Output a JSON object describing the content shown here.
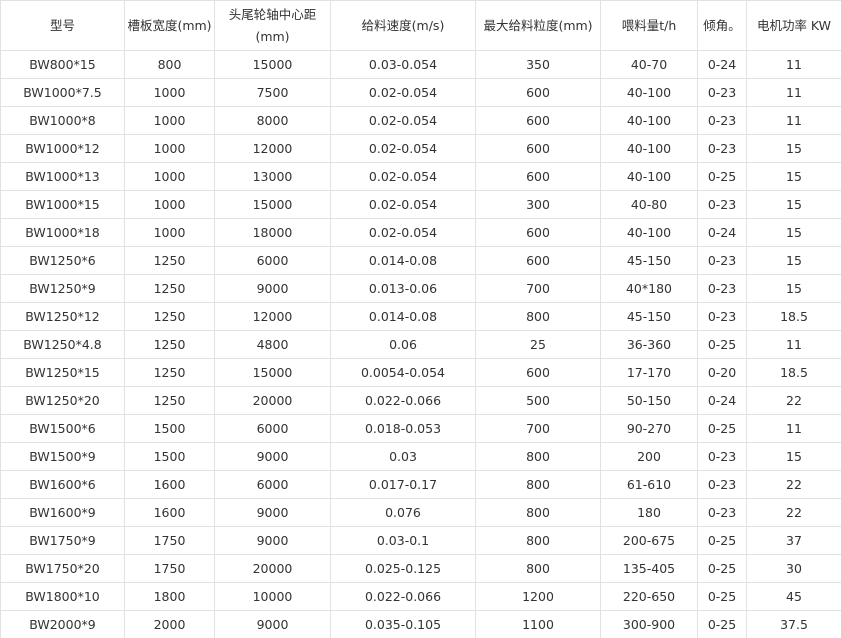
{
  "table": {
    "header": [
      "型号",
      "槽板宽度(mm)",
      "头尾轮轴中心距(mm)",
      "给料速度(m/s)",
      "最大给料粒度(mm)",
      "喂料量t/h",
      "倾角。",
      "电机功率 KW"
    ],
    "rows": [
      [
        "BW800*15",
        "800",
        "15000",
        "0.03-0.054",
        "350",
        "40-70",
        "0-24",
        "11"
      ],
      [
        "BW1000*7.5",
        "1000",
        "7500",
        "0.02-0.054",
        "600",
        "40-100",
        "0-23",
        "11"
      ],
      [
        "BW1000*8",
        "1000",
        "8000",
        "0.02-0.054",
        "600",
        "40-100",
        "0-23",
        "11"
      ],
      [
        "BW1000*12",
        "1000",
        "12000",
        "0.02-0.054",
        "600",
        "40-100",
        "0-23",
        "15"
      ],
      [
        "BW1000*13",
        "1000",
        "13000",
        "0.02-0.054",
        "600",
        "40-100",
        "0-25",
        "15"
      ],
      [
        "BW1000*15",
        "1000",
        "15000",
        "0.02-0.054",
        "300",
        "40-80",
        "0-23",
        "15"
      ],
      [
        "BW1000*18",
        "1000",
        "18000",
        "0.02-0.054",
        "600",
        "40-100",
        "0-24",
        "15"
      ],
      [
        "BW1250*6",
        "1250",
        "6000",
        "0.014-0.08",
        "600",
        "45-150",
        "0-23",
        "15"
      ],
      [
        "BW1250*9",
        "1250",
        "9000",
        "0.013-0.06",
        "700",
        "40*180",
        "0-23",
        "15"
      ],
      [
        "BW1250*12",
        "1250",
        "12000",
        "0.014-0.08",
        "800",
        "45-150",
        "0-23",
        "18.5"
      ],
      [
        "BW1250*4.8",
        "1250",
        "4800",
        "0.06",
        "25",
        "36-360",
        "0-25",
        "11"
      ],
      [
        "BW1250*15",
        "1250",
        "15000",
        "0.0054-0.054",
        "600",
        "17-170",
        "0-20",
        "18.5"
      ],
      [
        "BW1250*20",
        "1250",
        "20000",
        "0.022-0.066",
        "500",
        "50-150",
        "0-24",
        "22"
      ],
      [
        "BW1500*6",
        "1500",
        "6000",
        "0.018-0.053",
        "700",
        "90-270",
        "0-25",
        "11"
      ],
      [
        "BW1500*9",
        "1500",
        "9000",
        "0.03",
        "800",
        "200",
        "0-23",
        "15"
      ],
      [
        "BW1600*6",
        "1600",
        "6000",
        "0.017-0.17",
        "800",
        "61-610",
        "0-23",
        "22"
      ],
      [
        "BW1600*9",
        "1600",
        "9000",
        "0.076",
        "800",
        "180",
        "0-23",
        "22"
      ],
      [
        "BW1750*9",
        "1750",
        "9000",
        "0.03-0.1",
        "800",
        "200-675",
        "0-25",
        "37"
      ],
      [
        "BW1750*20",
        "1750",
        "20000",
        "0.025-0.125",
        "800",
        "135-405",
        "0-25",
        "30"
      ],
      [
        "BW1800*10",
        "1800",
        "10000",
        "0.022-0.066",
        "1200",
        "220-650",
        "0-25",
        "45"
      ],
      [
        "BW2000*9",
        "2000",
        "9000",
        "0.035-0.105",
        "1100",
        "300-900",
        "0-25",
        "37.5"
      ]
    ]
  }
}
